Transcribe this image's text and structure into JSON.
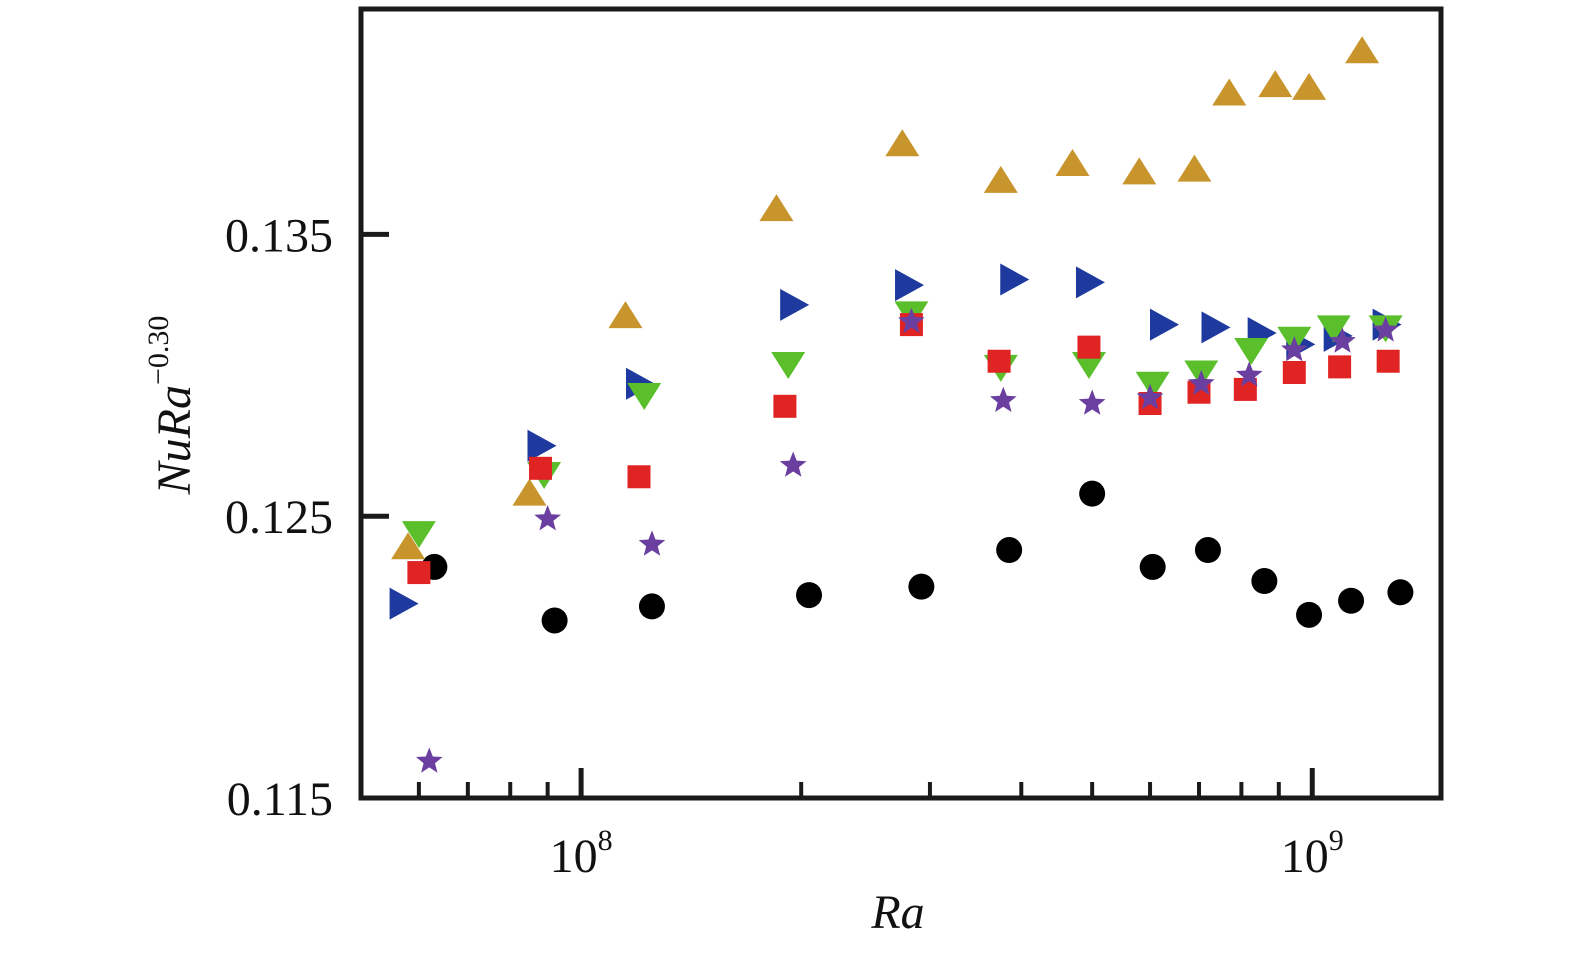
{
  "chart_data": {
    "type": "scatter",
    "title": "",
    "xlabel": "Ra",
    "ylabel": {
      "base": "NuRa",
      "exponent": "−0.30"
    },
    "x_scale": "log",
    "xlim": [
      50000000,
      1500000000
    ],
    "ylim": [
      0.115,
      0.143
    ],
    "y_ticks": [
      {
        "value": 0.115,
        "label": "0.115"
      },
      {
        "value": 0.125,
        "label": "0.125"
      },
      {
        "value": 0.135,
        "label": "0.135"
      }
    ],
    "x_major_ticks": [
      {
        "value": 100000000,
        "base": "10",
        "exp": "8"
      },
      {
        "value": 1000000000,
        "base": "10",
        "exp": "9"
      }
    ],
    "x_minor_ticks": [
      60000000,
      70000000,
      80000000,
      90000000,
      200000000,
      300000000,
      400000000,
      500000000,
      600000000,
      700000000,
      800000000,
      900000000
    ],
    "grid": false,
    "legend": "none",
    "series": [
      {
        "marker": "circle",
        "color": "#000000",
        "x": [
          63000000,
          92000000,
          125000000,
          205000000,
          292000000,
          385000000,
          500000000,
          605000000,
          720000000,
          860000000,
          990000000,
          1130000000,
          1320000000
        ],
        "y": [
          0.1232,
          0.1213,
          0.1218,
          0.1222,
          0.1225,
          0.1238,
          0.1258,
          0.1232,
          0.1238,
          0.1227,
          0.1215,
          0.122,
          0.1223
        ]
      },
      {
        "marker": "triangle-up",
        "color": "#C8952D",
        "x": [
          58000000,
          85000000,
          115000000,
          185000000,
          275000000,
          375000000,
          470000000,
          580000000,
          690000000,
          770000000,
          890000000,
          990000000,
          1170000000
        ],
        "y": [
          0.1239,
          0.1258,
          0.1321,
          0.1359,
          0.1382,
          0.1369,
          0.1375,
          0.1372,
          0.1373,
          0.14,
          0.1403,
          0.1402,
          0.1415
        ]
      },
      {
        "marker": "triangle-right",
        "color": "#1F3A9E",
        "x": [
          57000000,
          88000000,
          120000000,
          195000000,
          280000000,
          390000000,
          495000000,
          625000000,
          735000000,
          850000000,
          960000000,
          1080000000,
          1260000000
        ],
        "y": [
          0.1219,
          0.1275,
          0.1297,
          0.1325,
          0.1332,
          0.1334,
          0.1333,
          0.1318,
          0.1317,
          0.1315,
          0.1311,
          0.1314,
          0.1318
        ]
      },
      {
        "marker": "triangle-down",
        "color": "#5BBF2C",
        "x": [
          60000000,
          89000000,
          122000000,
          192000000,
          283000000,
          375000000,
          495000000,
          605000000,
          705000000,
          825000000,
          945000000,
          1070000000,
          1260000000
        ],
        "y": [
          0.1244,
          0.1265,
          0.1293,
          0.1304,
          0.1322,
          0.1303,
          0.1304,
          0.1297,
          0.1301,
          0.1309,
          0.1313,
          0.1317,
          0.1317
        ]
      },
      {
        "marker": "square",
        "color": "#E02424",
        "x": [
          60000000,
          88000000,
          120000000,
          190000000,
          283000000,
          373000000,
          495000000,
          600000000,
          700000000,
          810000000,
          945000000,
          1090000000,
          1270000000
        ],
        "y": [
          0.123,
          0.1267,
          0.1264,
          0.1289,
          0.1318,
          0.1305,
          0.131,
          0.129,
          0.1294,
          0.1295,
          0.1301,
          0.1303,
          0.1305
        ]
      },
      {
        "marker": "star",
        "color": "#6A3FA0",
        "x": [
          62000000,
          90000000,
          125000000,
          195000000,
          283000000,
          378000000,
          500000000,
          600000000,
          705000000,
          820000000,
          945000000,
          1100000000,
          1260000000
        ],
        "y": [
          0.1163,
          0.1249,
          0.124,
          0.1268,
          0.1319,
          0.1291,
          0.129,
          0.1292,
          0.1297,
          0.13,
          0.1309,
          0.1312,
          0.1316
        ]
      }
    ]
  }
}
